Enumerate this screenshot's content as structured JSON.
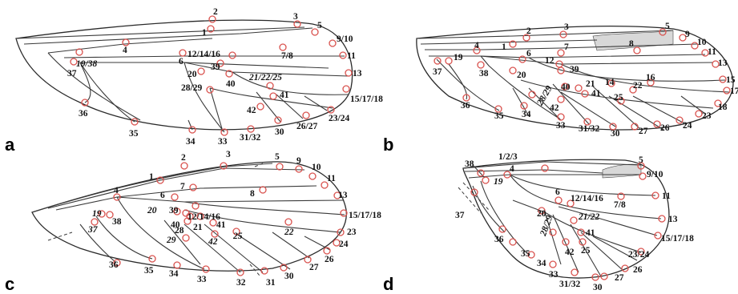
{
  "panels": [
    {
      "id": "a",
      "letter": "a",
      "labels": [
        "1",
        "2",
        "3",
        "4",
        "5",
        "6",
        "7/8",
        "9/10",
        "11",
        "12/14/16",
        "13",
        "15/17/18",
        "19/38",
        "20",
        "21/22/25",
        "23/24",
        "26/27",
        "28/29",
        "30",
        "31/32",
        "33",
        "34",
        "35",
        "36",
        "37",
        "39",
        "40",
        "41",
        "42"
      ]
    },
    {
      "id": "b",
      "letter": "b",
      "labels": [
        "1",
        "2",
        "3",
        "4",
        "5",
        "6",
        "7",
        "8",
        "9",
        "10",
        "11",
        "12",
        "13",
        "14",
        "15",
        "16",
        "17",
        "18",
        "19",
        "20",
        "21",
        "22",
        "23",
        "24",
        "25",
        "26",
        "27",
        "28/29",
        "30",
        "31/32",
        "33",
        "34",
        "35",
        "36",
        "37",
        "38",
        "39",
        "40",
        "41",
        "42"
      ]
    },
    {
      "id": "c",
      "letter": "c",
      "labels": [
        "1",
        "2",
        "3",
        "4",
        "5",
        "6",
        "7",
        "8",
        "9",
        "10",
        "11",
        "12/14/16",
        "13",
        "15/17/18",
        "19",
        "20",
        "21",
        "22",
        "23",
        "24",
        "25",
        "26",
        "27",
        "28",
        "29",
        "30",
        "31",
        "32",
        "33",
        "34",
        "35",
        "36",
        "37",
        "38",
        "39",
        "40",
        "41",
        "42"
      ]
    },
    {
      "id": "d",
      "letter": "d",
      "labels": [
        "1/2/3",
        "4",
        "5",
        "6",
        "7/8",
        "9/10",
        "11",
        "12/14/16",
        "13",
        "15/17/18",
        "19",
        "20",
        "21/22",
        "23/24",
        "25",
        "26",
        "27",
        "28/29",
        "30",
        "31/32",
        "33",
        "34",
        "35",
        "36",
        "37",
        "38",
        "41",
        "42"
      ]
    }
  ],
  "colors": {
    "landmark": "#d9534f",
    "vein": "#3a3a3a",
    "label": "#111111"
  }
}
